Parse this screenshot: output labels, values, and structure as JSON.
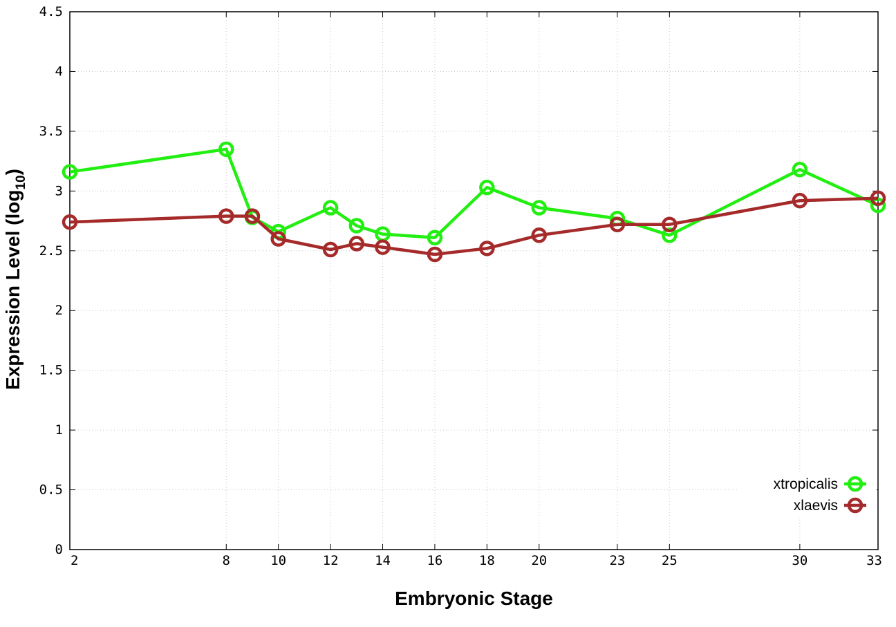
{
  "chart_data": {
    "type": "line",
    "title": "",
    "xlabel": "Embryonic Stage",
    "ylabel": {
      "main": "Expression Level (log",
      "subscript": "10",
      "close": ")"
    },
    "x_ticks": [
      "2",
      "8",
      "10",
      "12",
      "14",
      "16",
      "18",
      "20",
      "23",
      "25",
      "30",
      "33"
    ],
    "y_ticks": [
      "0",
      "0.5",
      "1",
      "1.5",
      "2",
      "2.5",
      "3",
      "3.5",
      "4",
      "4.5"
    ],
    "xlim": [
      2,
      33
    ],
    "ylim": [
      0,
      4.5
    ],
    "grid": true,
    "legend_position": "bottom-right",
    "series": [
      {
        "name": "xtropicalis",
        "color": "#22ee11",
        "marker": "open-circle",
        "x": [
          2,
          8,
          9,
          10,
          12,
          13,
          14,
          16,
          18,
          20,
          23,
          25,
          30,
          33
        ],
        "y": [
          3.16,
          3.35,
          2.78,
          2.66,
          2.86,
          2.71,
          2.64,
          2.61,
          3.03,
          2.86,
          2.77,
          2.63,
          3.18,
          2.88
        ]
      },
      {
        "name": "xlaevis",
        "color": "#a52a2a",
        "marker": "open-circle",
        "x": [
          2,
          8,
          9,
          10,
          12,
          13,
          14,
          16,
          18,
          20,
          23,
          25,
          30,
          33
        ],
        "y": [
          2.74,
          2.79,
          2.79,
          2.6,
          2.51,
          2.56,
          2.53,
          2.47,
          2.52,
          2.63,
          2.72,
          2.72,
          2.92,
          2.94
        ]
      }
    ]
  }
}
